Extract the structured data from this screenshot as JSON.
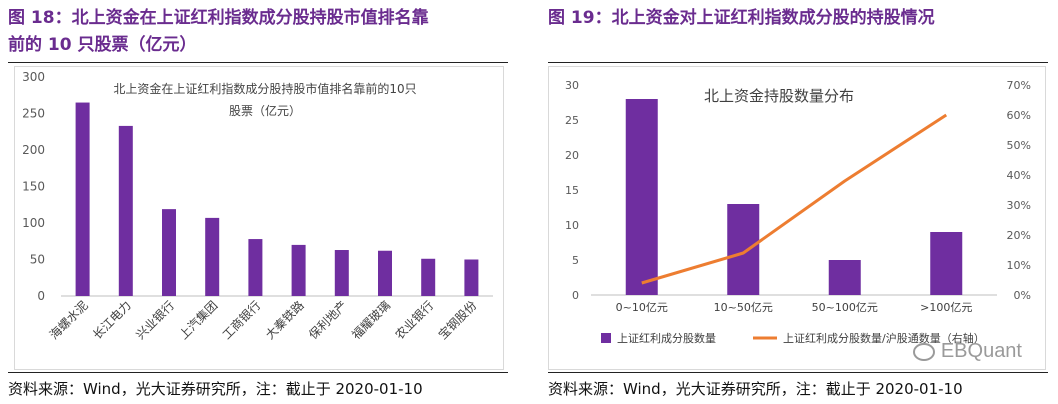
{
  "left": {
    "heading_line1": "图 18：北上资金在上证红利指数成分股持股市值排名靠",
    "heading_line2": "前的 10 只股票（亿元）",
    "source": "资料来源：Wind，光大证券研究所，注：截止于 2020-01-10"
  },
  "right": {
    "heading": "图 19：北上资金对上证红利指数成分股的持股情况",
    "source": "资料来源：Wind，光大证券研究所，注：截止于 2020-01-10"
  },
  "watermark": {
    "text": "EBQuant",
    "icon": "wechat-icon"
  },
  "colors": {
    "accent": "#6a2c8f",
    "bar": "#6f2ea0",
    "line": "#ed7d31"
  },
  "chart_data": [
    {
      "type": "bar",
      "title_line1": "北上资金在上证红利指数成分股持股市值排名靠前的10只",
      "title_line2": "股票（亿元）",
      "categories": [
        "海螺水泥",
        "长江电力",
        "兴业银行",
        "上汽集团",
        "工商银行",
        "大秦铁路",
        "保利地产",
        "福耀玻璃",
        "农业银行",
        "宝钢股份"
      ],
      "values": [
        265,
        233,
        119,
        107,
        78,
        70,
        63,
        62,
        51,
        50
      ],
      "ylim": [
        0,
        300
      ],
      "yticks": [
        "0",
        "50",
        "100",
        "150",
        "200",
        "250",
        "300"
      ],
      "grid": false,
      "legend": "none"
    },
    {
      "type": "bar+line",
      "title": "北上资金持股数量分布",
      "categories": [
        "0~10亿元",
        "10~50亿元",
        "50~100亿元",
        ">100亿元"
      ],
      "series": [
        {
          "name": "上证红利成分股数量",
          "type": "bar",
          "axis": "left",
          "values": [
            28,
            13,
            5,
            9
          ]
        },
        {
          "name": "上证红利成分股数量/沪股通数量（右轴）",
          "type": "line",
          "axis": "right",
          "values": [
            0.04,
            0.14,
            0.38,
            0.6
          ]
        }
      ],
      "ylim_left": [
        0,
        30
      ],
      "yticks_left": [
        "0",
        "5",
        "10",
        "15",
        "20",
        "25",
        "30"
      ],
      "ylim_right": [
        0,
        0.7
      ],
      "yticks_right": [
        "0%",
        "10%",
        "20%",
        "30%",
        "40%",
        "50%",
        "60%",
        "70%"
      ],
      "grid": false,
      "legend": "bottom"
    }
  ]
}
